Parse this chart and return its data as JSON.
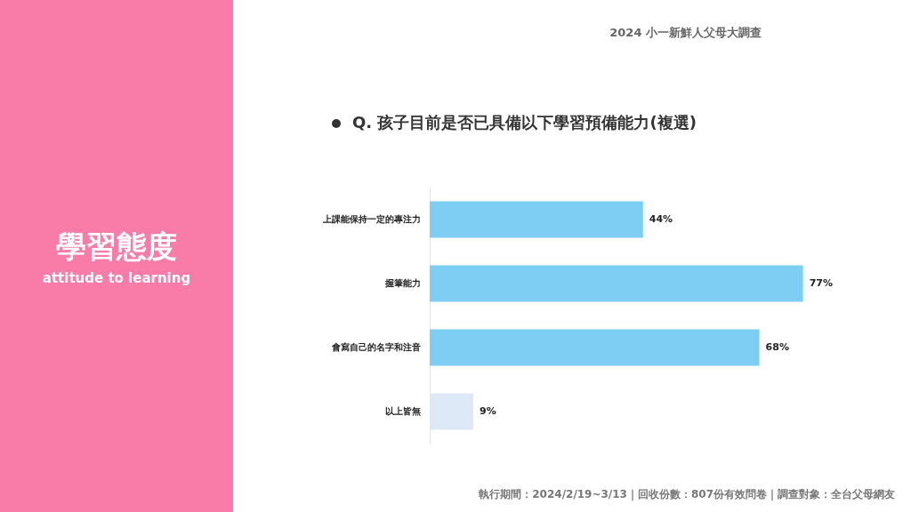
{
  "chart_data": {
    "type": "bar",
    "orientation": "horizontal",
    "title": "Q. 孩子目前是否已具備以下學習預備能力(複選)",
    "categories": [
      "上課能保持一定的專注力",
      "握筆能力",
      "會寫自己的名字和注音",
      "以上皆無"
    ],
    "values": [
      44,
      77,
      68,
      9
    ],
    "colors": [
      "#7ecef4",
      "#7ecef4",
      "#7ecef4",
      "#dde9f6"
    ],
    "value_labels": [
      "44%",
      "77%",
      "68%",
      "9%"
    ],
    "grid": false,
    "legend": false,
    "tick_labels": "y",
    "annotations": [
      "2024 小一新鮮人父母大調查",
      "學習態度",
      "attitude to learning",
      "執行期間：2024/2/19~3/13｜回收份數：807份有效問卷｜調查對象：全台父母網友"
    ]
  }
}
